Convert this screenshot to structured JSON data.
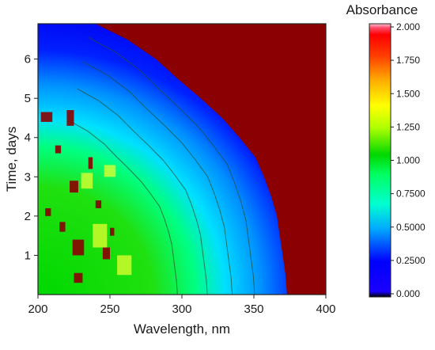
{
  "chart_data": {
    "type": "heatmap",
    "xlabel": "Wavelength, nm",
    "ylabel": "Time, days",
    "xlim": [
      200,
      400
    ],
    "ylim": [
      0,
      6.9
    ],
    "x_ticks": [
      200,
      250,
      300,
      350,
      400
    ],
    "y_ticks": [
      1,
      2,
      3,
      4,
      5,
      6
    ],
    "colorbar": {
      "title": "Absorbance",
      "min": 0,
      "max": 2.0,
      "ticks": [
        "0.000",
        "0.2500",
        "0.5000",
        "0.7500",
        "1.000",
        "1.250",
        "1.500",
        "1.750",
        "2.000"
      ],
      "tick_values": [
        0,
        0.25,
        0.5,
        0.75,
        1.0,
        1.25,
        1.5,
        1.75,
        2.0
      ],
      "colors": [
        "#000000",
        "#0000ff",
        "#00aaff",
        "#00ff80",
        "#00c800",
        "#ffff00",
        "#ffa000",
        "#ff2000",
        "#ff0000",
        "#b00000",
        "#ffb0c8"
      ],
      "over_color": "#8b0000"
    },
    "saturated_boundary": {
      "description_points_time": [
        6.9,
        6.5,
        6.0,
        5.5,
        5.0,
        4.5,
        4.0,
        3.5,
        3.0,
        2.5,
        2.0,
        1.5,
        1.0,
        0.5,
        0.0
      ],
      "wavelength_nm": [
        240,
        262,
        282,
        297,
        313,
        328,
        340,
        351,
        357,
        362,
        366,
        368,
        370,
        372,
        373
      ]
    },
    "series_note": ""
  }
}
